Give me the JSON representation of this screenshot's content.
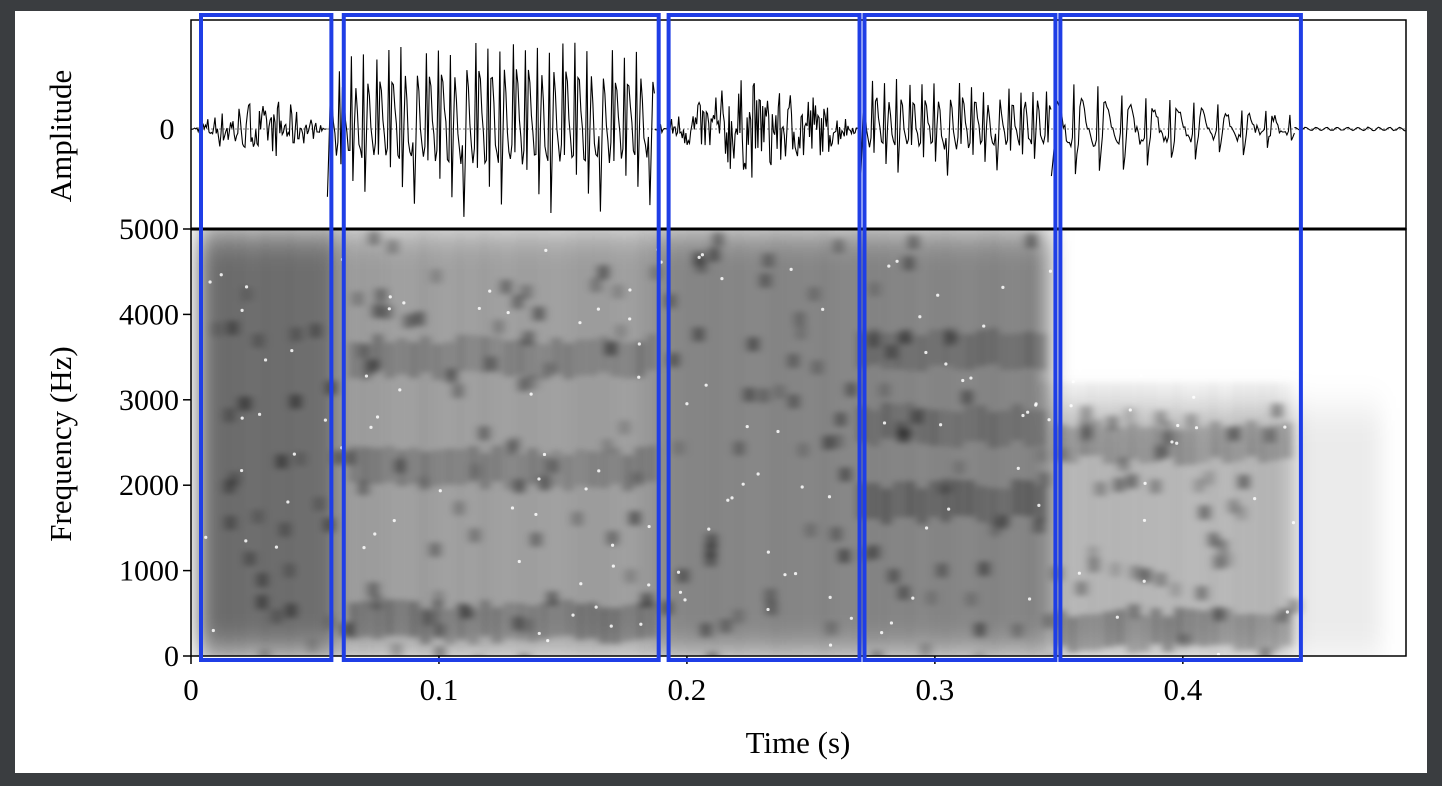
{
  "chart_data": [
    {
      "type": "line",
      "panel": "waveform",
      "ylabel": "Amplitude",
      "yticks": [
        "0"
      ],
      "xlim": [
        0,
        0.49
      ],
      "zero_line": "dotted",
      "segments": [
        {
          "t": [
            0.0,
            0.055
          ],
          "kind": "noise",
          "amp": 0.32
        },
        {
          "t": [
            0.055,
            0.187
          ],
          "kind": "voiced",
          "amp": 0.92
        },
        {
          "t": [
            0.187,
            0.27
          ],
          "kind": "noise",
          "amp": 0.55
        },
        {
          "t": [
            0.27,
            0.347
          ],
          "kind": "voiced",
          "amp": 0.65
        },
        {
          "t": [
            0.347,
            0.445
          ],
          "kind": "decay",
          "amp": 0.48
        },
        {
          "t": [
            0.445,
            0.49
          ],
          "kind": "silence",
          "amp": 0.02
        }
      ]
    },
    {
      "type": "heatmap",
      "panel": "spectrogram",
      "ylabel": "Frequency (Hz)",
      "xlabel": "Time (s)",
      "ylim": [
        0,
        5000
      ],
      "xlim": [
        0,
        0.49
      ],
      "yticks": [
        "0",
        "1000",
        "2000",
        "3000",
        "4000",
        "5000"
      ],
      "yticks_values": [
        0,
        1000,
        2000,
        3000,
        4000,
        5000
      ],
      "xticks": [
        "0",
        "0.1",
        "0.2",
        "0.3",
        "0.4"
      ],
      "xticks_values": [
        0,
        0.1,
        0.2,
        0.3,
        0.4
      ],
      "colormap": "grayscale (dark = high energy)",
      "formant_bands_hz": [
        {
          "t": [
            0.065,
            0.185
          ],
          "f": [
            400,
            2200,
            3500
          ]
        },
        {
          "t": [
            0.27,
            0.345
          ],
          "f": [
            1800,
            2700,
            3600
          ]
        },
        {
          "t": [
            0.35,
            0.445
          ],
          "f": [
            300,
            2500
          ]
        }
      ]
    }
  ],
  "annotations": {
    "highlight_color": "#1f3ee6",
    "segment_boxes_s": [
      [
        0.0,
        0.055
      ],
      [
        0.06,
        0.187
      ],
      [
        0.191,
        0.268
      ],
      [
        0.27,
        0.347
      ],
      [
        0.349,
        0.446
      ]
    ]
  }
}
